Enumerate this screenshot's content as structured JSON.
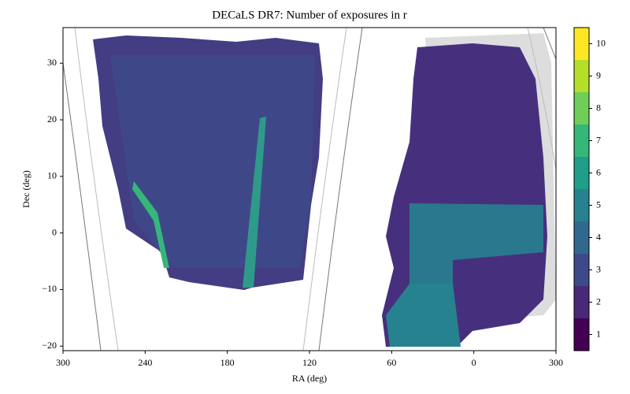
{
  "chart_data": {
    "type": "skymap",
    "title": "DECaLS DR7: Number of exposures in r",
    "xlabel": "RA (deg)",
    "ylabel": "Dec (deg)",
    "xlim": [
      300,
      -60
    ],
    "ylim": [
      -20.8,
      36.3
    ],
    "xticks": [
      300,
      240,
      180,
      120,
      60,
      0,
      {
        "value": -60,
        "label": "300"
      }
    ],
    "yticks": [
      -20,
      -10,
      0,
      10,
      20,
      30
    ],
    "colorbar": {
      "lim": [
        0.5,
        10.5
      ],
      "ticks": [
        1,
        2,
        3,
        4,
        5,
        6,
        7,
        8,
        9,
        10
      ],
      "colors": [
        "#440154",
        "#482878",
        "#3e4989",
        "#31688e",
        "#26828e",
        "#1f9e89",
        "#35b779",
        "#6ece58",
        "#b5de2b",
        "#fde725"
      ]
    }
  }
}
